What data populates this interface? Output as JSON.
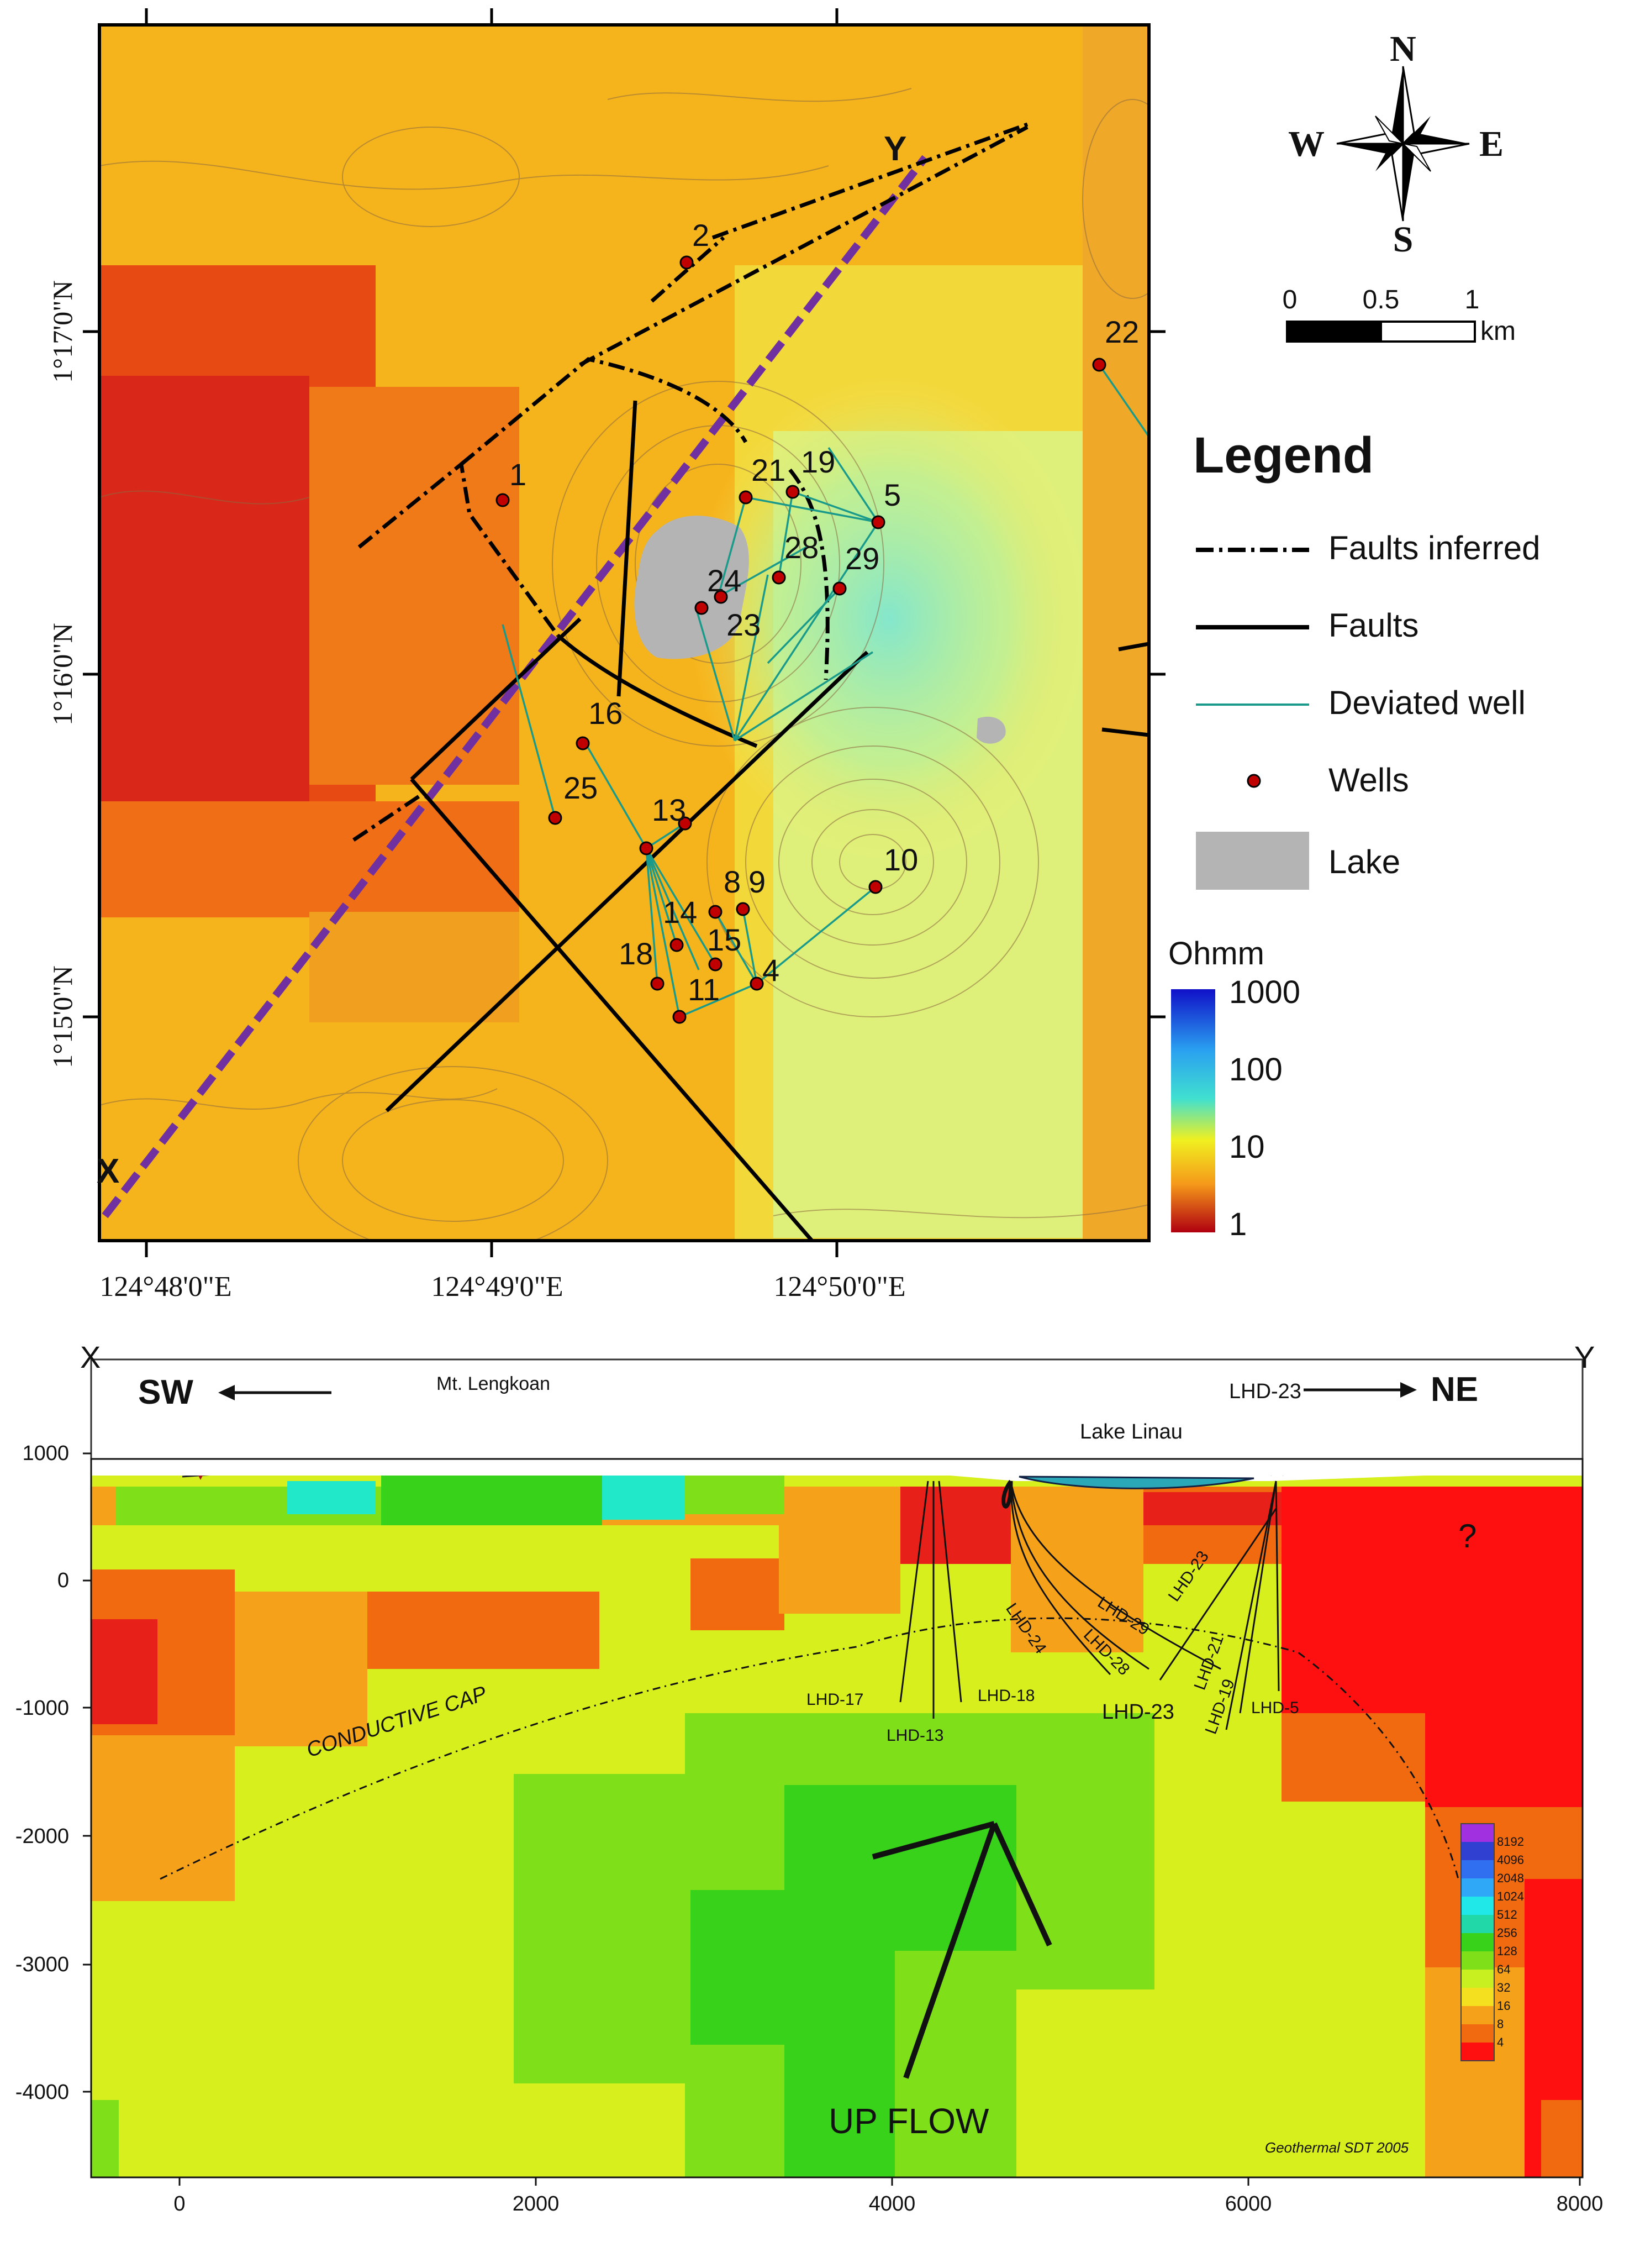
{
  "map": {
    "title_points": {
      "x": "X",
      "y": "Y"
    },
    "lat_labels": [
      "1°17'0\"N",
      "1°16'0\"N",
      "1°15'0\"N"
    ],
    "lon_labels": [
      "124°48'0\"E",
      "124°49'0\"E",
      "124°50'0\"E"
    ],
    "wells": [
      {
        "id": "1"
      },
      {
        "id": "2"
      },
      {
        "id": "4"
      },
      {
        "id": "5"
      },
      {
        "id": "8"
      },
      {
        "id": "9"
      },
      {
        "id": "10"
      },
      {
        "id": "11"
      },
      {
        "id": "13"
      },
      {
        "id": "14"
      },
      {
        "id": "15"
      },
      {
        "id": "16"
      },
      {
        "id": "18"
      },
      {
        "id": "19"
      },
      {
        "id": "21"
      },
      {
        "id": "22"
      },
      {
        "id": "23"
      },
      {
        "id": "24"
      },
      {
        "id": "25"
      },
      {
        "id": "28"
      },
      {
        "id": "29"
      }
    ],
    "compass": {
      "n": "N",
      "s": "S",
      "e": "E",
      "w": "W"
    },
    "scale": {
      "labels": [
        "0",
        "0.5",
        "1"
      ],
      "unit": "km"
    },
    "legend": {
      "title": "Legend",
      "items": [
        {
          "label": "Faults inferred"
        },
        {
          "label": "Faults"
        },
        {
          "label": "Deviated well"
        },
        {
          "label": "Wells"
        },
        {
          "label": "Lake"
        }
      ]
    },
    "colorbar": {
      "unit": "Ohmm",
      "ticks": [
        "1000",
        "100",
        "10",
        "1"
      ]
    },
    "colors": {
      "fault": "#000000",
      "profile": "#7030a0",
      "deviated_well": "#1a9a8a",
      "well": "#c00000",
      "lake": "#b4b4b4"
    }
  },
  "section": {
    "corner_left": "X",
    "corner_right": "Y",
    "dir_left": "SW",
    "dir_right": "NE",
    "mountain": "Mt. Lengkoan",
    "lake": "Lake Linau",
    "rig": "LHD-23",
    "cap_label": "CONDUCTIVE CAP",
    "upflow_label": "UP FLOW",
    "question": "?",
    "credit": "Geothermal SDT 2005",
    "y_ticks": [
      "1000",
      "0",
      "-1000",
      "-2000",
      "-3000",
      "-4000"
    ],
    "x_ticks": [
      "0",
      "2000",
      "4000",
      "6000",
      "8000"
    ],
    "well_labels": [
      "LHD-17",
      "LHD-13",
      "LHD-18",
      "LHD-24",
      "LHD-28",
      "LHD-29",
      "LHD-23",
      "LHD-21",
      "LHD-19",
      "LHD-5",
      "LHD-23"
    ],
    "legend_ticks": [
      "8192",
      "4096",
      "2048",
      "1024",
      "512",
      "256",
      "128",
      "64",
      "32",
      "16",
      "8",
      "4"
    ]
  }
}
